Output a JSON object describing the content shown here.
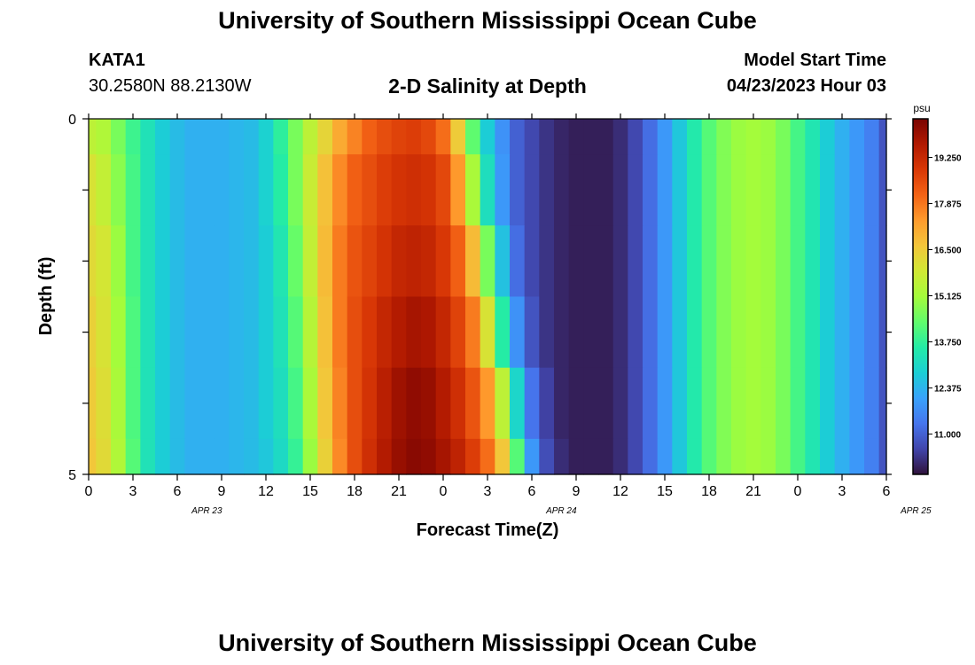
{
  "header": {
    "title": "University of Southern Mississippi Ocean Cube",
    "station_id": "KATA1",
    "coordinates": "30.2580N  88.2130W",
    "subtitle": "2-D Salinity at Depth",
    "model_start_label": "Model Start Time",
    "model_start_value": "04/23/2023 Hour 03"
  },
  "footer": {
    "title": "University of Southern Mississippi Ocean Cube"
  },
  "chart_data": {
    "type": "heatmap",
    "title": "2-D Salinity at Depth",
    "xlabel": "Forecast Time(Z)",
    "ylabel": "Depth (ft)",
    "x_tick_labels": [
      "0",
      "3",
      "6",
      "9",
      "12",
      "15",
      "18",
      "21",
      "0",
      "3",
      "6",
      "9",
      "12",
      "15",
      "18",
      "21",
      "0",
      "3",
      "6"
    ],
    "x_date_labels": [
      {
        "label": "APR 23",
        "at_hour": 0
      },
      {
        "label": "APR 24",
        "at_hour": 24
      },
      {
        "label": "APR 25",
        "at_hour": 48
      }
    ],
    "y_tick_labels": [
      "0",
      "5"
    ],
    "ylim": [
      0,
      5
    ],
    "colorbar": {
      "unit": "psu",
      "min": 9.8,
      "max": 20.4,
      "ticks": [
        "11.000",
        "12.375",
        "13.750",
        "15.125",
        "16.500",
        "17.875",
        "19.250"
      ],
      "tick_values": [
        11.0,
        12.375,
        13.75,
        15.125,
        16.5,
        17.875,
        19.25
      ],
      "colors": [
        "#30123b",
        "#4145ab",
        "#4675ed",
        "#39a2fc",
        "#1bcfd4",
        "#24eca6",
        "#61fc6c",
        "#a4fc3b",
        "#d1e834",
        "#f3c63a",
        "#fe9b2d",
        "#f36315",
        "#d93806",
        "#b11901",
        "#7a0402"
      ]
    },
    "x_hours": [
      0,
      1,
      2,
      3,
      4,
      5,
      6,
      7,
      8,
      9,
      10,
      11,
      12,
      13,
      14,
      15,
      16,
      17,
      18,
      19,
      20,
      21,
      22,
      23,
      24,
      25,
      26,
      27,
      28,
      29,
      30,
      31,
      32,
      33,
      34,
      35,
      36,
      37,
      38,
      39,
      40,
      41,
      42,
      43,
      44,
      45,
      46,
      47,
      48,
      49,
      50,
      51,
      52,
      53,
      54
    ],
    "rows": [
      {
        "depth": "0.0-0.5",
        "values": [
          15.5,
          15.3,
          14.6,
          13.9,
          13.3,
          12.8,
          12.5,
          12.3,
          12.3,
          12.3,
          12.4,
          12.5,
          12.9,
          13.7,
          14.6,
          15.5,
          16.3,
          17.1,
          17.7,
          18.2,
          18.5,
          18.7,
          18.8,
          18.6,
          18.0,
          16.5,
          14.3,
          12.8,
          11.8,
          11.0,
          10.6,
          10.3,
          10.1,
          10.0,
          10.0,
          10.0,
          10.2,
          10.6,
          11.2,
          11.9,
          12.7,
          13.5,
          14.2,
          14.7,
          15.0,
          15.1,
          15.0,
          14.6,
          14.0,
          13.4,
          12.8,
          12.3,
          11.9,
          11.5,
          10.8
        ]
      },
      {
        "depth": "0.5-1.5",
        "values": [
          16.0,
          15.6,
          14.8,
          14.0,
          13.3,
          12.8,
          12.5,
          12.3,
          12.3,
          12.3,
          12.4,
          12.5,
          12.9,
          13.6,
          14.6,
          15.7,
          16.7,
          17.6,
          18.2,
          18.5,
          18.8,
          19.0,
          19.1,
          19.0,
          18.6,
          17.4,
          15.2,
          13.2,
          11.9,
          11.0,
          10.6,
          10.3,
          10.1,
          10.0,
          10.0,
          10.0,
          10.2,
          10.6,
          11.2,
          11.9,
          12.7,
          13.5,
          14.2,
          14.7,
          15.0,
          15.1,
          15.0,
          14.6,
          14.0,
          13.4,
          12.8,
          12.3,
          11.9,
          11.5,
          10.8
        ]
      },
      {
        "depth": "1.5-2.5",
        "values": [
          16.2,
          15.9,
          15.0,
          14.0,
          13.3,
          12.8,
          12.5,
          12.3,
          12.3,
          12.3,
          12.4,
          12.5,
          12.8,
          13.4,
          14.4,
          15.6,
          16.8,
          17.8,
          18.4,
          18.7,
          19.0,
          19.3,
          19.4,
          19.3,
          18.9,
          18.2,
          16.8,
          14.6,
          12.6,
          11.2,
          10.6,
          10.3,
          10.1,
          10.0,
          10.0,
          10.0,
          10.2,
          10.6,
          11.2,
          11.9,
          12.7,
          13.5,
          14.2,
          14.7,
          15.0,
          15.1,
          15.0,
          14.6,
          14.0,
          13.4,
          12.8,
          12.3,
          11.9,
          11.5,
          10.8
        ]
      },
      {
        "depth": "2.5-3.5",
        "values": [
          16.4,
          16.0,
          15.1,
          14.1,
          13.3,
          12.8,
          12.5,
          12.3,
          12.3,
          12.3,
          12.4,
          12.5,
          12.8,
          13.3,
          14.2,
          15.4,
          16.7,
          17.8,
          18.5,
          18.9,
          19.3,
          19.6,
          19.8,
          19.7,
          19.3,
          18.7,
          17.8,
          16.0,
          13.6,
          11.8,
          10.8,
          10.3,
          10.1,
          10.0,
          10.0,
          10.0,
          10.2,
          10.6,
          11.2,
          11.9,
          12.7,
          13.5,
          14.2,
          14.7,
          15.0,
          15.1,
          15.0,
          14.6,
          14.0,
          13.4,
          12.8,
          12.3,
          11.9,
          11.5,
          10.8
        ]
      },
      {
        "depth": "3.5-4.5",
        "values": [
          16.5,
          16.1,
          15.2,
          14.1,
          13.3,
          12.8,
          12.5,
          12.3,
          12.3,
          12.3,
          12.4,
          12.5,
          12.8,
          13.2,
          14.0,
          15.2,
          16.6,
          17.7,
          18.5,
          19.0,
          19.5,
          19.9,
          20.1,
          20.0,
          19.6,
          19.1,
          18.4,
          17.4,
          15.5,
          13.0,
          11.3,
          10.5,
          10.1,
          10.0,
          10.0,
          10.0,
          10.2,
          10.6,
          11.2,
          11.9,
          12.7,
          13.5,
          14.2,
          14.7,
          15.0,
          15.1,
          15.0,
          14.6,
          14.0,
          13.4,
          12.8,
          12.3,
          11.9,
          11.5,
          10.8
        ]
      },
      {
        "depth": "4.5-5.0",
        "values": [
          16.6,
          16.2,
          15.3,
          14.2,
          13.3,
          12.8,
          12.5,
          12.3,
          12.3,
          12.3,
          12.4,
          12.5,
          12.7,
          13.1,
          13.8,
          15.0,
          16.4,
          17.6,
          18.5,
          19.1,
          19.6,
          20.0,
          20.2,
          20.1,
          19.8,
          19.4,
          18.8,
          18.0,
          16.6,
          14.2,
          11.9,
          10.7,
          10.2,
          10.0,
          10.0,
          10.0,
          10.2,
          10.6,
          11.2,
          11.9,
          12.7,
          13.5,
          14.2,
          14.7,
          15.0,
          15.1,
          15.0,
          14.6,
          14.0,
          13.4,
          12.8,
          12.3,
          11.9,
          11.5,
          10.8
        ]
      }
    ]
  }
}
